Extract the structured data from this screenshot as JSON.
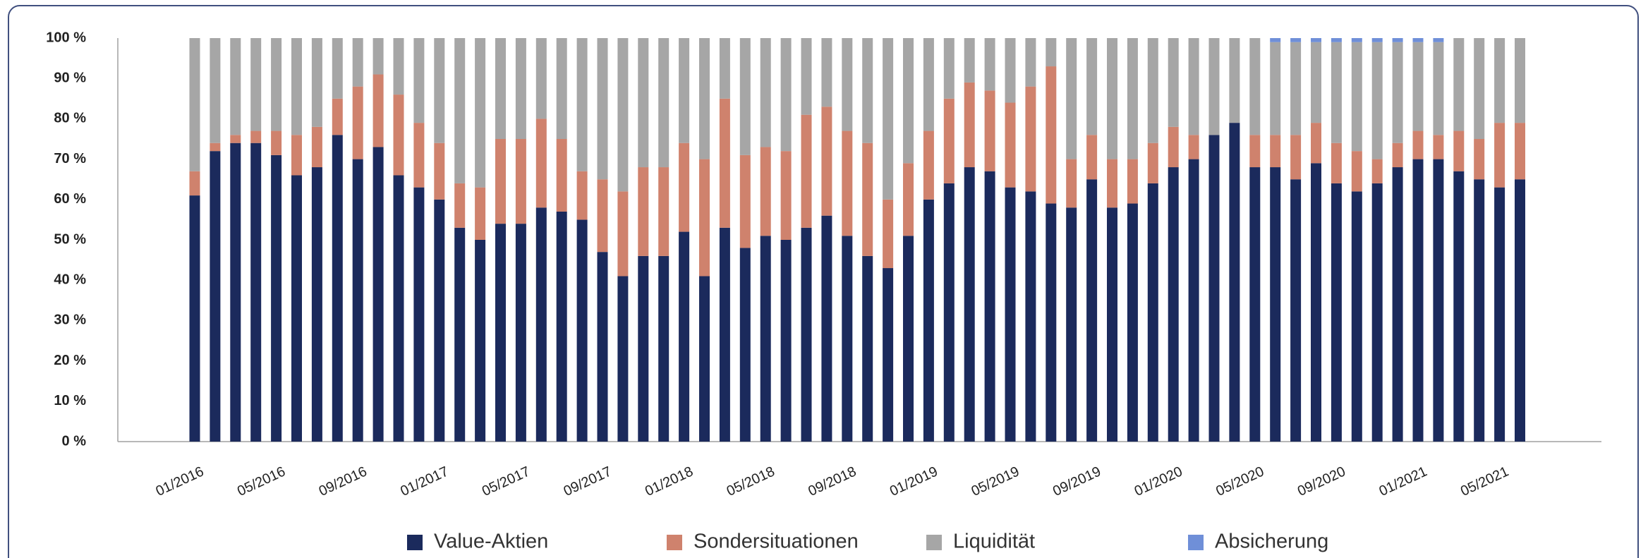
{
  "chart_data": {
    "type": "stacked-bar",
    "categories": [
      "01/2016",
      null,
      null,
      null,
      "05/2016",
      null,
      null,
      null,
      "09/2016",
      null,
      null,
      null,
      "01/2017",
      null,
      null,
      null,
      "05/2017",
      null,
      null,
      null,
      "09/2017",
      null,
      null,
      null,
      "01/2018",
      null,
      null,
      null,
      "05/2018",
      null,
      null,
      null,
      "09/2018",
      null,
      null,
      null,
      "01/2019",
      null,
      null,
      null,
      "05/2019",
      null,
      null,
      null,
      "09/2019",
      null,
      null,
      null,
      "01/2020",
      null,
      null,
      null,
      "05/2020",
      null,
      null,
      null,
      "09/2020",
      null,
      null,
      null,
      "01/2021",
      null,
      null,
      null,
      "05/2021",
      null
    ],
    "series": [
      {
        "name": "Value-Aktien",
        "color": "#1b2a5c",
        "values": [
          61,
          72,
          74,
          74,
          71,
          66,
          68,
          76,
          70,
          73,
          66,
          63,
          60,
          53,
          50,
          54,
          54,
          58,
          57,
          55,
          47,
          41,
          46,
          46,
          52,
          41,
          53,
          48,
          51,
          50,
          53,
          56,
          51,
          46,
          43,
          51,
          60,
          64,
          68,
          67,
          63,
          62,
          59,
          58,
          65,
          58,
          59,
          64,
          68,
          70,
          76,
          79,
          68,
          68,
          65,
          69,
          64,
          62,
          64,
          68,
          70,
          70,
          67,
          65,
          63,
          65
        ]
      },
      {
        "name": "Sondersituationen",
        "color": "#cf826d",
        "values": [
          6,
          2,
          2,
          3,
          6,
          10,
          10,
          9,
          18,
          18,
          20,
          16,
          14,
          11,
          13,
          21,
          21,
          22,
          18,
          12,
          18,
          21,
          22,
          22,
          22,
          29,
          32,
          23,
          22,
          22,
          28,
          27,
          26,
          28,
          17,
          18,
          17,
          21,
          21,
          20,
          21,
          26,
          34,
          12,
          11,
          12,
          11,
          10,
          10,
          6,
          0,
          0,
          8,
          8,
          11,
          10,
          10,
          10,
          6,
          6,
          7,
          6,
          10,
          10,
          16,
          14
        ]
      },
      {
        "name": "Liquidität",
        "color": "#a6a6a6",
        "values": [
          33,
          26,
          24,
          23,
          23,
          24,
          22,
          15,
          12,
          9,
          14,
          21,
          26,
          36,
          37,
          25,
          25,
          20,
          25,
          33,
          35,
          38,
          32,
          32,
          26,
          30,
          15,
          29,
          27,
          28,
          19,
          17,
          23,
          26,
          40,
          31,
          23,
          15,
          11,
          13,
          16,
          12,
          7,
          30,
          24,
          30,
          30,
          26,
          22,
          24,
          24,
          21,
          24,
          23,
          23,
          20,
          25,
          27,
          29,
          25,
          22,
          23,
          23,
          25,
          21,
          21
        ]
      },
      {
        "name": "Absicherung",
        "color": "#6f8fd8",
        "values": [
          0,
          0,
          0,
          0,
          0,
          0,
          0,
          0,
          0,
          0,
          0,
          0,
          0,
          0,
          0,
          0,
          0,
          0,
          0,
          0,
          0,
          0,
          0,
          0,
          0,
          0,
          0,
          0,
          0,
          0,
          0,
          0,
          0,
          0,
          0,
          0,
          0,
          0,
          0,
          0,
          0,
          0,
          0,
          0,
          0,
          0,
          0,
          0,
          0,
          0,
          0,
          0,
          0,
          1,
          1,
          1,
          1,
          1,
          1,
          1,
          1,
          1,
          0,
          0,
          0,
          0
        ]
      }
    ],
    "ylim": [
      0,
      100
    ],
    "yticks": [
      {
        "value": 0,
        "label": "0 %"
      },
      {
        "value": 10,
        "label": "10 %"
      },
      {
        "value": 20,
        "label": "20 %"
      },
      {
        "value": 30,
        "label": "30 %"
      },
      {
        "value": 40,
        "label": "40 %"
      },
      {
        "value": 50,
        "label": "50 %"
      },
      {
        "value": 60,
        "label": "60 %"
      },
      {
        "value": 70,
        "label": "70 %"
      },
      {
        "value": 80,
        "label": "80 %"
      },
      {
        "value": 90,
        "label": "90 %"
      },
      {
        "value": 100,
        "label": "100 %"
      }
    ],
    "grid": false,
    "legend": "bottom"
  }
}
